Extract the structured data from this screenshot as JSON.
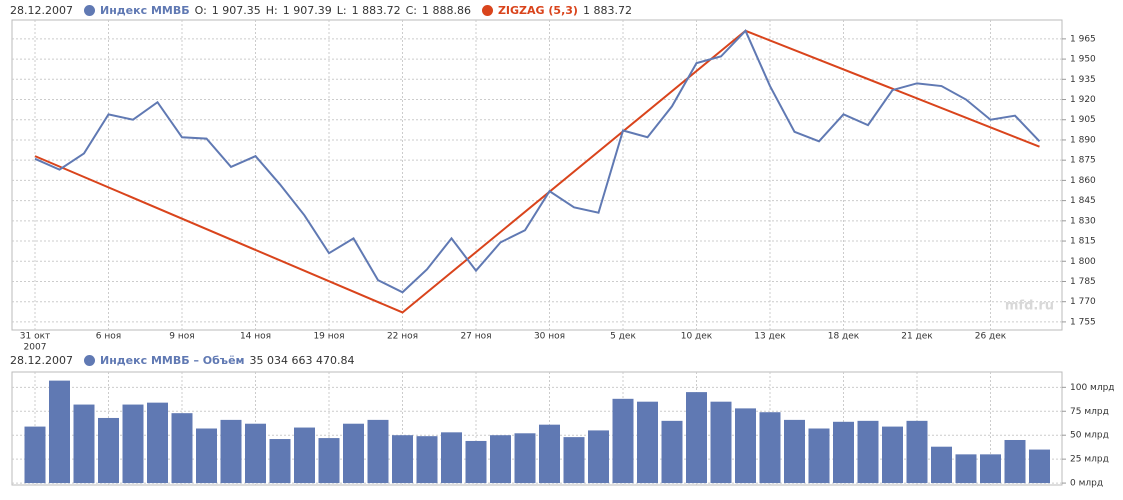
{
  "chart_data": [
    {
      "type": "line",
      "date": "28.12.2007",
      "ohlc": [
        {
          "label": "O:",
          "value": "1 907.35"
        },
        {
          "label": "H:",
          "value": "1 907.39"
        },
        {
          "label": "L:",
          "value": "1 883.72"
        },
        {
          "label": "C:",
          "value": "1 888.86"
        }
      ],
      "categories": [
        "31 окт",
        null,
        null,
        "6 ноя",
        null,
        null,
        "9 ноя",
        null,
        null,
        "14 ноя",
        null,
        null,
        "19 ноя",
        null,
        null,
        "22 ноя",
        null,
        null,
        "27 ноя",
        null,
        null,
        "30 ноя",
        null,
        null,
        "5 дек",
        null,
        null,
        "10 дек",
        null,
        null,
        "13 дек",
        null,
        null,
        "18 дек",
        null,
        null,
        "21 дек",
        null,
        null,
        "26 дек",
        null,
        null
      ],
      "year_label": "2007",
      "series": [
        {
          "name": "Индекс ММВБ",
          "color": "#6079b3",
          "values": [
            1876,
            1868,
            1880,
            1909,
            1905,
            1918,
            1892,
            1891,
            1870,
            1878,
            1857,
            1834,
            1806,
            1817,
            1786,
            1777,
            1794,
            1817,
            1793,
            1814,
            1823,
            1852,
            1840,
            1836,
            1897,
            1892,
            1915,
            1947,
            1952,
            1971,
            1930,
            1896,
            1889,
            1909,
            1901,
            1927,
            1932,
            1930,
            1920,
            1905,
            1908,
            1889
          ]
        }
      ],
      "zigzag": {
        "name": "ZIGZAG (5,3)",
        "color": "#d9441c",
        "last": "1 883.72",
        "x": [
          0,
          15,
          29,
          41
        ],
        "values": [
          1878,
          1762,
          1971,
          1885
        ]
      },
      "ylim": [
        1749,
        1979
      ],
      "yticks": [
        {
          "value": 1755,
          "label": "1 755"
        },
        {
          "value": 1770,
          "label": "1 770"
        },
        {
          "value": 1785,
          "label": "1 785"
        },
        {
          "value": 1800,
          "label": "1 800"
        },
        {
          "value": 1815,
          "label": "1 815"
        },
        {
          "value": 1830,
          "label": "1 830"
        },
        {
          "value": 1845,
          "label": "1 845"
        },
        {
          "value": 1860,
          "label": "1 860"
        },
        {
          "value": 1875,
          "label": "1 875"
        },
        {
          "value": 1890,
          "label": "1 890"
        },
        {
          "value": 1905,
          "label": "1 905"
        },
        {
          "value": 1920,
          "label": "1 920"
        },
        {
          "value": 1935,
          "label": "1 935"
        },
        {
          "value": 1950,
          "label": "1 950"
        },
        {
          "value": 1965,
          "label": "1 965"
        }
      ],
      "grid": true,
      "watermark": "mfd.ru"
    },
    {
      "type": "bar",
      "date": "28.12.2007",
      "name": "Индекс ММВБ – Объём",
      "last": "35 034 663 470.84",
      "color": "#6079b3",
      "values": [
        59,
        107,
        82,
        68,
        82,
        84,
        73,
        57,
        66,
        62,
        46,
        58,
        47,
        62,
        66,
        50,
        49,
        53,
        44,
        50,
        52,
        61,
        48,
        55,
        88,
        85,
        65,
        95,
        85,
        78,
        74,
        66,
        57,
        64,
        65,
        59,
        65,
        38,
        30,
        30,
        45,
        35
      ],
      "ylim": [
        -2,
        116
      ],
      "yticks": [
        {
          "value": 0,
          "label": "0 млрд"
        },
        {
          "value": 25,
          "label": "25 млрд"
        },
        {
          "value": 50,
          "label": "50 млрд"
        },
        {
          "value": 75,
          "label": "75 млрд"
        },
        {
          "value": 100,
          "label": "100 млрд"
        }
      ],
      "grid": true
    }
  ]
}
